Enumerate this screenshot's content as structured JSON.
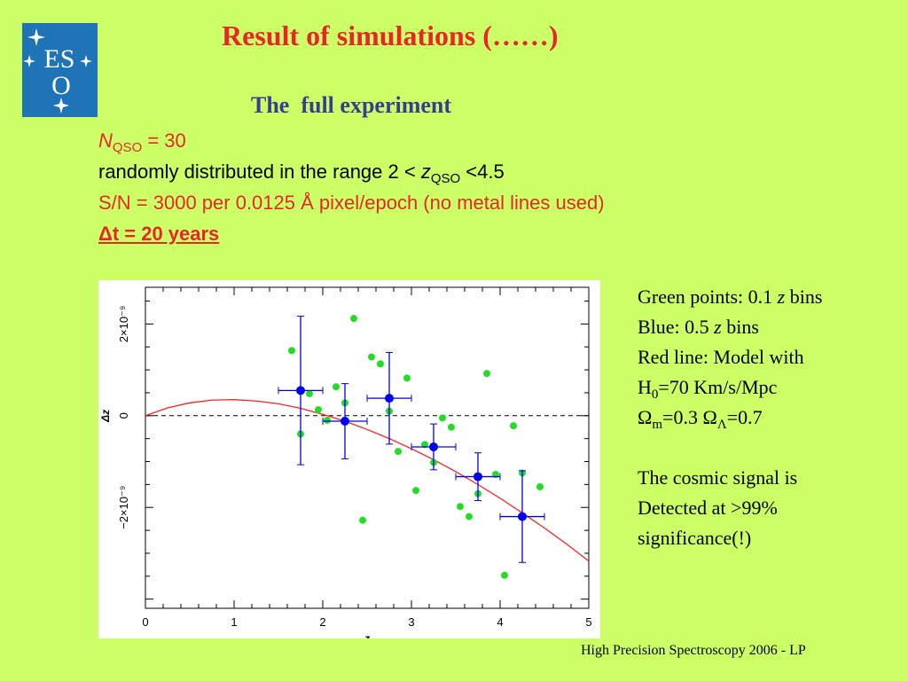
{
  "header": {
    "title": "Result of simulations (……)",
    "subtitle": "The  full experiment"
  },
  "logo": {
    "text_top": "ES",
    "text_bottom": "O",
    "color": "#1f74b8"
  },
  "params": {
    "n_symbol": "N",
    "n_sub": "QSO",
    "n_value": " = 30",
    "range_prefix": "randomly distributed in the range 2 < ",
    "range_z": "z",
    "range_sub": "QSO",
    "range_suffix": " <4.5",
    "sn_line": "S/N = 3000 per 0.0125 Å pixel/epoch (no metal lines used)",
    "dt_delta": "Δ",
    "dt_rest": "t = 20 years"
  },
  "legend": {
    "green_prefix": "Green points: 0.1 ",
    "green_z": "z",
    "green_suffix": " bins",
    "blue_prefix": "Blue: 0.5 ",
    "blue_z": "z",
    "blue_suffix": " bins",
    "red_line": "Red line: Model with",
    "h0_sym": "H",
    "h0_sub": "0",
    "h0_rest": "=70 Km/s/Mpc",
    "om_sym": "Ω",
    "om_sub": "m",
    "om_mid": "=0.3 ",
    "ol_sym": "Ω",
    "ol_sub": "Λ",
    "ol_rest": "=0.7",
    "signal_1": "The cosmic signal is",
    "signal_2": "Detected at >99%",
    "signal_3": "significance(!)"
  },
  "footer": {
    "text": "High Precision Spectroscopy 2006 - LP"
  },
  "chart_data": {
    "type": "scatter",
    "xlabel": "z",
    "ylabel": "Δz",
    "xlim": [
      0,
      5
    ],
    "ylim": [
      -4.2e-09,
      2.8e-09
    ],
    "x_ticks": [
      "0",
      "1",
      "2",
      "3",
      "4",
      "5"
    ],
    "y_ticks": [
      {
        "value": 2e-09,
        "label": "2×10⁻⁹"
      },
      {
        "value": 0,
        "label": "0"
      },
      {
        "value": -2e-09,
        "label": "−2×10⁻⁹"
      }
    ],
    "zero_line": true,
    "colors": {
      "green": "#22dd22",
      "blue": "#0000ee",
      "red": "#ff2020"
    },
    "series": [
      {
        "kind": "points",
        "color": "green",
        "x": [
          1.65,
          1.75,
          1.85,
          1.95,
          2.05,
          2.15,
          2.25,
          2.35,
          2.45,
          2.55,
          2.65,
          2.75,
          2.85,
          2.95,
          3.05,
          3.15,
          3.25,
          3.35,
          3.45,
          3.55,
          3.65,
          3.75,
          3.85,
          3.95,
          4.05,
          4.15,
          4.25,
          4.45
        ],
        "y": [
          1.42e-09,
          -4e-10,
          4.8e-10,
          1.3e-10,
          -1e-10,
          6.3e-10,
          2.8e-10,
          2.12e-09,
          -2.28e-09,
          1.28e-09,
          1.13e-09,
          1e-10,
          -7.8e-10,
          8.2e-10,
          -1.63e-09,
          -6.3e-10,
          -1.02e-09,
          -5e-11,
          -2.5e-10,
          -1.98e-09,
          -2.2e-09,
          -1.7e-09,
          9.2e-10,
          -1.28e-09,
          -3.48e-09,
          -2.2e-10,
          -1.25e-09,
          -1.55e-09
        ]
      },
      {
        "kind": "binned",
        "color": "blue",
        "x": [
          1.75,
          2.25,
          2.75,
          3.25,
          3.75,
          4.25
        ],
        "y": [
          5.5e-10,
          -1.2e-10,
          3.8e-10,
          -6.8e-10,
          -1.33e-09,
          -2.2e-09
        ],
        "xerr": [
          0.25,
          0.25,
          0.25,
          0.25,
          0.25,
          0.25
        ],
        "yerr": [
          1.62e-09,
          8.2e-10,
          1e-09,
          5e-10,
          5.2e-10,
          1e-09
        ]
      },
      {
        "kind": "curve",
        "color": "red",
        "x": [
          0,
          0.25,
          0.5,
          0.75,
          1.0,
          1.25,
          1.5,
          1.75,
          2.0,
          2.25,
          2.5,
          2.75,
          3.0,
          3.25,
          3.5,
          3.75,
          4.0,
          4.25,
          4.5,
          4.75,
          5.0
        ],
        "y": [
          0,
          1.7e-10,
          2.8e-10,
          3.4e-10,
          3.5e-10,
          3.2e-10,
          2.6e-10,
          1.6e-10,
          3e-11,
          -1.2e-10,
          -3e-10,
          -5e-10,
          -7.2e-10,
          -9.6e-10,
          -1.22e-09,
          -1.5e-09,
          -1.8e-09,
          -2.12e-09,
          -2.45e-09,
          -2.8e-09,
          -3.17e-09
        ]
      }
    ]
  }
}
